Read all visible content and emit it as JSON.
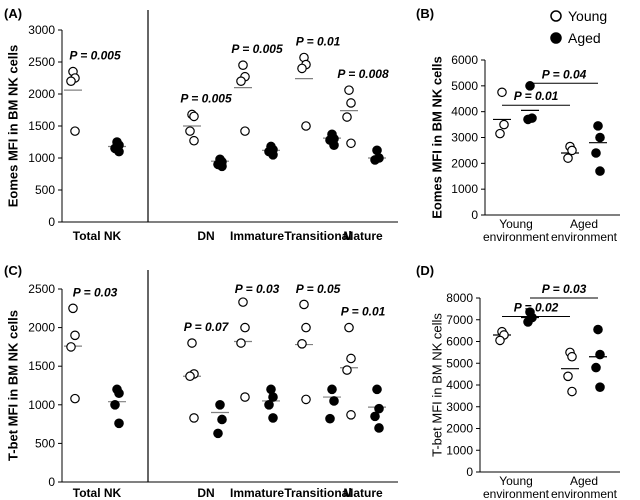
{
  "legend": {
    "young": "Young",
    "aged": "Aged",
    "placement": "top-right"
  },
  "colors": {
    "young_fill": "#ffffff",
    "aged_fill": "#000000",
    "stroke": "#000000",
    "bar": "#808080",
    "sig": "#000000"
  },
  "chart_data": [
    {
      "panel": "(A)",
      "type": "scatter",
      "ylabel": "Eomes MFI in BM NK cells",
      "ylim": [
        0,
        3000
      ],
      "yticks": [
        0,
        500,
        1000,
        1500,
        2000,
        2500,
        3000
      ],
      "groups": [
        {
          "label": "Total NK",
          "young": [
            2350,
            2250,
            2200,
            1420
          ],
          "aged": [
            1250,
            1200,
            1150,
            1100
          ],
          "young_mean": 2060,
          "aged_mean": 1180,
          "p": "P = 0.005"
        },
        {
          "label": "DN",
          "young": [
            1680,
            1650,
            1420,
            1270
          ],
          "aged": [
            980,
            940,
            900,
            870
          ],
          "young_mean": 1500,
          "aged_mean": 950,
          "p": "P = 0.005"
        },
        {
          "label": "Immature",
          "young": [
            2450,
            2270,
            2200,
            1420
          ],
          "aged": [
            1180,
            1130,
            1100,
            1050
          ],
          "young_mean": 2100,
          "aged_mean": 1120,
          "p": "P = 0.005"
        },
        {
          "label": "Transitional",
          "young": [
            2570,
            2460,
            2400,
            1500
          ],
          "aged": [
            1370,
            1300,
            1280,
            1200
          ],
          "young_mean": 2240,
          "aged_mean": 1310,
          "p": "P = 0.01"
        },
        {
          "label": "Mature",
          "young": [
            2060,
            1860,
            1640,
            1230
          ],
          "aged": [
            1120,
            1000,
            970
          ],
          "young_mean": 1740,
          "aged_mean": 1000,
          "p": "P = 0.008"
        }
      ],
      "divider_after": 0
    },
    {
      "panel": "(B)",
      "type": "scatter",
      "ylabel": "Eomes MFI in BM NK cells",
      "ylim": [
        0,
        6000
      ],
      "yticks": [
        0,
        1000,
        2000,
        3000,
        4000,
        5000,
        6000
      ],
      "groups": [
        {
          "label": "Young environment",
          "young": [
            4750,
            3500,
            3150
          ],
          "aged": [
            5000,
            3750,
            3700
          ],
          "young_mean": 3700,
          "aged_mean": 4050
        },
        {
          "label": "Aged environment",
          "young": [
            2650,
            2500,
            2200
          ],
          "aged": [
            3450,
            3000,
            2400,
            1700
          ],
          "young_mean": 2400,
          "aged_mean": 2800
        }
      ],
      "brackets": [
        {
          "text": "P = 0.01",
          "from": "0-young",
          "to": "1-young",
          "y": 4250
        },
        {
          "text": "P = 0.04",
          "from": "0-aged",
          "to": "1-aged",
          "y": 5100
        }
      ]
    },
    {
      "panel": "(C)",
      "type": "scatter",
      "ylabel": "T-bet MFI in BM NK cells",
      "ylim": [
        0,
        2500
      ],
      "yticks": [
        0,
        500,
        1000,
        1500,
        2000,
        2500
      ],
      "groups": [
        {
          "label": "Total NK",
          "young": [
            2250,
            1900,
            1750,
            1080
          ],
          "aged": [
            1200,
            1150,
            1000,
            760
          ],
          "young_mean": 1760,
          "aged_mean": 1040,
          "p": "P = 0.03"
        },
        {
          "label": "DN",
          "young": [
            1800,
            1400,
            1370,
            830
          ],
          "aged": [
            1000,
            810,
            630
          ],
          "young_mean": 1370,
          "aged_mean": 900,
          "p": "P = 0.07"
        },
        {
          "label": "Immature",
          "young": [
            2330,
            2000,
            1800,
            1100
          ],
          "aged": [
            1200,
            1100,
            1000,
            830
          ],
          "young_mean": 1820,
          "aged_mean": 1050,
          "p": "P = 0.03"
        },
        {
          "label": "Transitional",
          "young": [
            2300,
            2000,
            1790,
            1070
          ],
          "aged": [
            1200,
            1050,
            820
          ],
          "young_mean": 1780,
          "aged_mean": 1100,
          "p": "P = 0.05"
        },
        {
          "label": "Mature",
          "young": [
            2000,
            1600,
            1450,
            870
          ],
          "aged": [
            1200,
            950,
            850,
            700
          ],
          "young_mean": 1480,
          "aged_mean": 970,
          "p": "P = 0.01"
        }
      ],
      "divider_after": 0
    },
    {
      "panel": "(D)",
      "type": "scatter",
      "ylabel": "T-bet MFI in BM NK cells",
      "ylim": [
        0,
        8000
      ],
      "yticks": [
        0,
        1000,
        2000,
        3000,
        4000,
        5000,
        6000,
        7000,
        8000
      ],
      "groups": [
        {
          "label": "Young environment",
          "young": [
            6450,
            6300,
            6050
          ],
          "aged": [
            7350,
            7100,
            6900
          ],
          "young_mean": 6300,
          "aged_mean": 7100
        },
        {
          "label": "Aged environment",
          "young": [
            5500,
            5300,
            4400,
            3700
          ],
          "aged": [
            6550,
            5400,
            4800,
            3900
          ],
          "young_mean": 4750,
          "aged_mean": 5300
        }
      ],
      "brackets": [
        {
          "text": "P = 0.02",
          "from": "0-young",
          "to": "1-young",
          "y": 7150
        },
        {
          "text": "P = 0.03",
          "from": "0-aged",
          "to": "1-aged",
          "y": 8000
        }
      ]
    }
  ]
}
